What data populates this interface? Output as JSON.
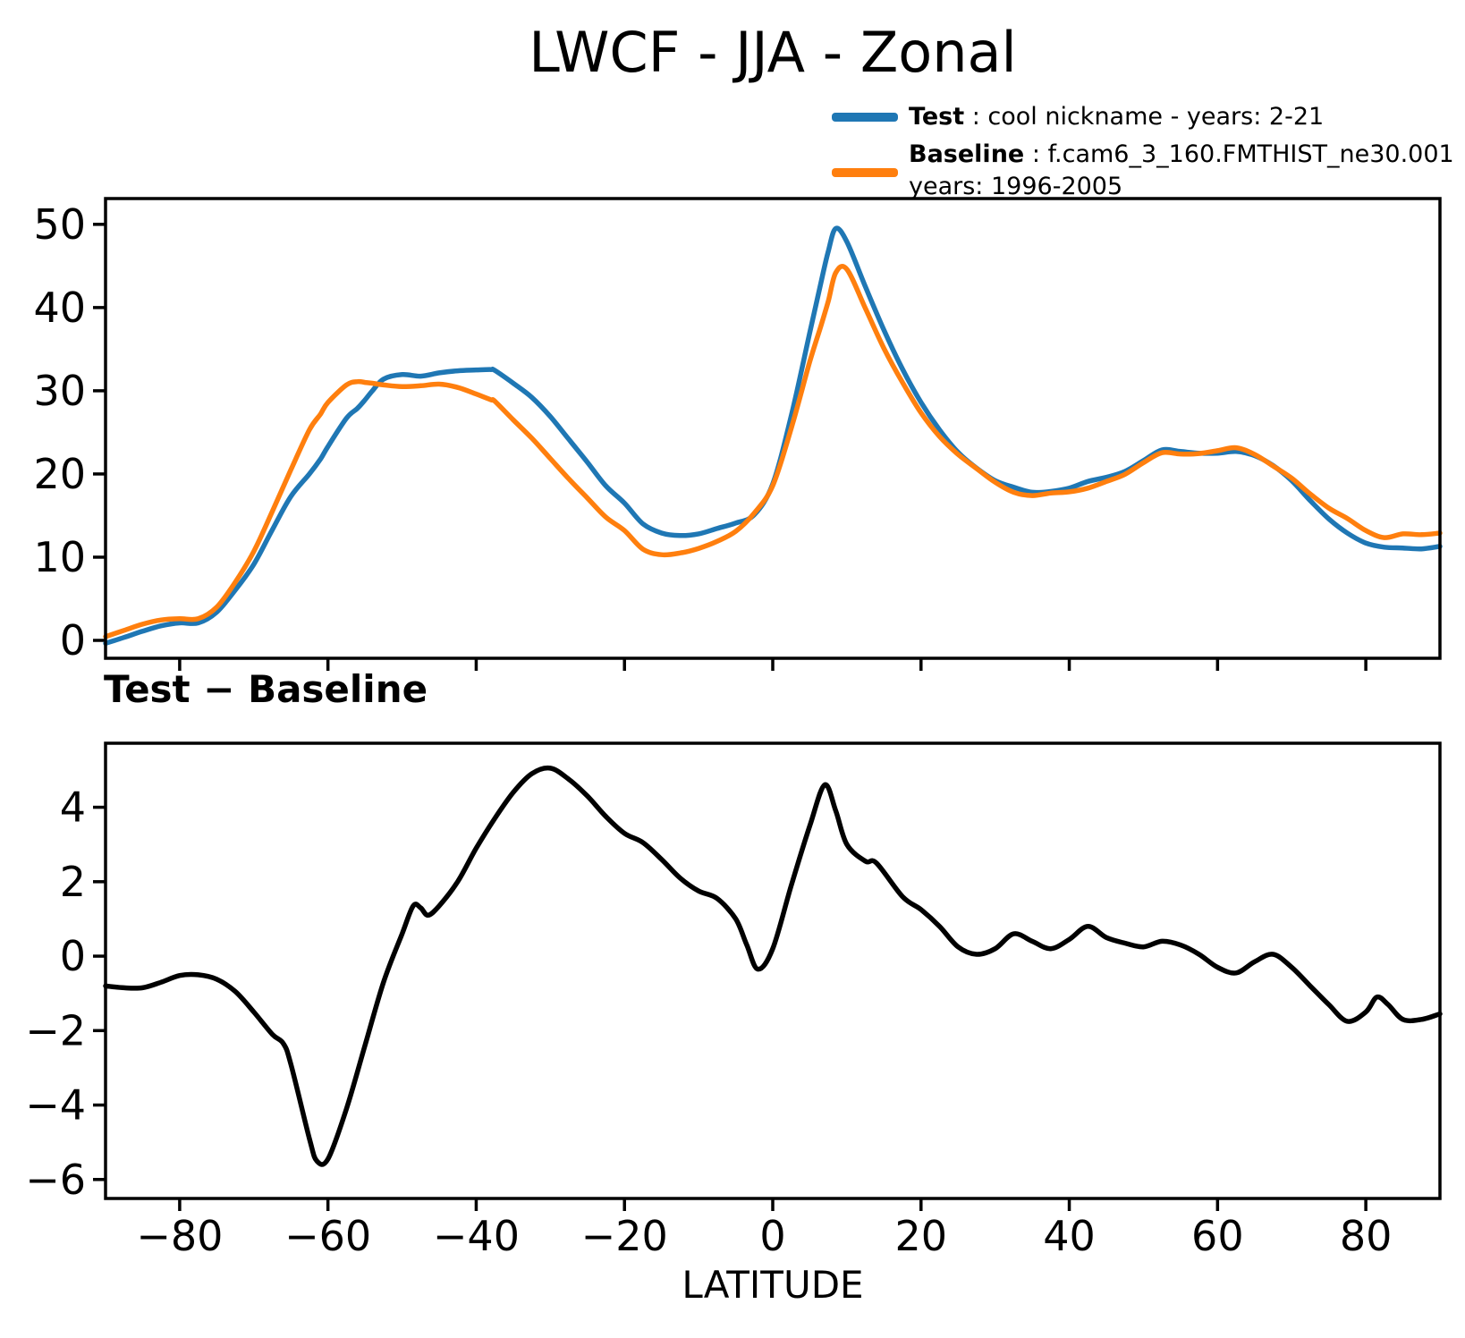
{
  "title": "LWCF - JJA - Zonal",
  "legend": {
    "entries": [
      {
        "name": "Test",
        "rest": " : cool nickname - years: 2-21",
        "line2": "",
        "color": "#1f77b4"
      },
      {
        "name": "Baseline",
        "rest": " : f.cam6_3_160.FMTHIST_ne30.001",
        "line2": "years: 1996-2005",
        "color": "#ff7f0e"
      }
    ]
  },
  "chart_data": [
    {
      "type": "line",
      "title": "LWCF - JJA - Zonal",
      "xlabel": "LATITUDE",
      "ylabel": "",
      "grid": false,
      "legend_position": "upper right, above axes",
      "xlim": [
        -90,
        90
      ],
      "ylim": [
        -2.15,
        53.1
      ],
      "xticks": [
        -80,
        -60,
        -40,
        -20,
        0,
        20,
        40,
        60,
        80
      ],
      "xtick_labels_visible": false,
      "yticks": [
        0,
        10,
        20,
        30,
        40,
        50
      ],
      "x": [
        -90,
        -87.5,
        -85,
        -82.5,
        -80,
        -77.5,
        -75,
        -72.5,
        -70,
        -67.5,
        -65,
        -62.5,
        -61,
        -60,
        -57.5,
        -56,
        -55,
        -54,
        -52.5,
        -50,
        -47.5,
        -45,
        -42.5,
        -40,
        -38,
        -37.5,
        -35,
        -32.5,
        -30,
        -27.5,
        -25,
        -22.5,
        -20,
        -17.5,
        -15,
        -12.5,
        -10,
        -7.5,
        -5,
        -2.5,
        0,
        2.5,
        5,
        6.5,
        7.5,
        8.5,
        10,
        12.5,
        15,
        17.5,
        20,
        22.5,
        25,
        27.5,
        30,
        32.5,
        35,
        37.5,
        40,
        42.5,
        45,
        47.5,
        50,
        52.5,
        55,
        57.5,
        60,
        62.5,
        65,
        67.5,
        70,
        72.5,
        75,
        77.5,
        80,
        82.5,
        85,
        87.5,
        90
      ],
      "series": [
        {
          "name": "Test",
          "color": "#1f77b4",
          "values": [
            -0.35,
            0.35,
            1.1,
            1.75,
            2.1,
            2.1,
            3.4,
            6.05,
            9.15,
            13.3,
            17.3,
            20.0,
            21.8,
            23.3,
            26.7,
            27.9,
            28.9,
            30.0,
            31.4,
            31.95,
            31.75,
            32.15,
            32.4,
            32.5,
            32.55,
            32.45,
            30.9,
            29.2,
            26.9,
            24.15,
            21.4,
            18.55,
            16.5,
            14.0,
            12.9,
            12.6,
            12.8,
            13.45,
            14.1,
            15.1,
            18.8,
            27.0,
            37.0,
            43.0,
            46.8,
            49.5,
            47.9,
            42.5,
            37.3,
            32.6,
            28.6,
            25.3,
            22.6,
            20.7,
            19.2,
            18.4,
            17.8,
            17.9,
            18.3,
            19.1,
            19.6,
            20.3,
            21.6,
            22.9,
            22.7,
            22.5,
            22.5,
            22.7,
            22.2,
            21.0,
            19.2,
            16.8,
            14.6,
            12.9,
            11.7,
            11.2,
            11.1,
            11.0,
            11.3
          ]
        },
        {
          "name": "Baseline",
          "color": "#ff7f0e",
          "values": [
            0.45,
            1.2,
            1.95,
            2.45,
            2.6,
            2.6,
            4.0,
            7.0,
            10.7,
            15.5,
            20.5,
            25.3,
            27.2,
            28.6,
            30.7,
            31.1,
            31.0,
            30.9,
            30.7,
            30.5,
            30.6,
            30.8,
            30.4,
            29.6,
            28.9,
            28.75,
            26.5,
            24.3,
            21.85,
            19.4,
            17.1,
            14.8,
            13.2,
            10.95,
            10.3,
            10.5,
            11.05,
            11.9,
            13.1,
            15.3,
            18.6,
            25.5,
            33.5,
            37.8,
            40.8,
            44.2,
            44.6,
            39.9,
            35.1,
            31.0,
            27.35,
            24.5,
            22.35,
            20.65,
            19.0,
            17.8,
            17.4,
            17.7,
            17.85,
            18.3,
            19.1,
            19.95,
            21.35,
            22.55,
            22.4,
            22.45,
            22.8,
            23.15,
            22.35,
            20.95,
            19.5,
            17.6,
            15.9,
            14.65,
            13.2,
            12.35,
            12.8,
            12.7,
            12.9
          ]
        }
      ]
    },
    {
      "type": "line",
      "title": "Test − Baseline",
      "xlabel": "LATITUDE",
      "ylabel": "",
      "grid": false,
      "xlim": [
        -90,
        90
      ],
      "ylim": [
        -6.51,
        5.72
      ],
      "xticks": [
        -80,
        -60,
        -40,
        -20,
        0,
        20,
        40,
        60,
        80
      ],
      "xtick_labels_visible": true,
      "yticks": [
        -6,
        -4,
        -2,
        0,
        2,
        4
      ],
      "x": [
        -90,
        -87.5,
        -85,
        -82.5,
        -80,
        -77.5,
        -75,
        -72.5,
        -70,
        -67.5,
        -66,
        -65,
        -62.5,
        -61.5,
        -60,
        -57.5,
        -55,
        -52.5,
        -50,
        -48.5,
        -47.5,
        -46.5,
        -45,
        -42.5,
        -40,
        -37.5,
        -35,
        -32.5,
        -30,
        -27.5,
        -25,
        -22.5,
        -20,
        -17.5,
        -15,
        -12.5,
        -10,
        -7.5,
        -5,
        -3.5,
        -2,
        0,
        2.5,
        5,
        7,
        8.5,
        10,
        12.5,
        14,
        17.5,
        20,
        22.5,
        25,
        27.5,
        30,
        32.5,
        35,
        37.5,
        40,
        42.5,
        45,
        47.5,
        50,
        52.5,
        55,
        57.5,
        60,
        62.5,
        65,
        67.5,
        70,
        72.5,
        75,
        77.5,
        80,
        81.5,
        83,
        85,
        87.5,
        90
      ],
      "series": [
        {
          "name": "Test minus Baseline",
          "color": "#000000",
          "values": [
            -0.8,
            -0.85,
            -0.85,
            -0.7,
            -0.52,
            -0.5,
            -0.62,
            -0.95,
            -1.5,
            -2.1,
            -2.35,
            -2.9,
            -4.9,
            -5.5,
            -5.45,
            -4.1,
            -2.4,
            -0.7,
            0.6,
            1.35,
            1.3,
            1.1,
            1.35,
            2.0,
            2.9,
            3.7,
            4.4,
            4.9,
            5.05,
            4.75,
            4.3,
            3.75,
            3.3,
            3.05,
            2.6,
            2.1,
            1.75,
            1.55,
            1.0,
            0.3,
            -0.35,
            0.2,
            1.9,
            3.5,
            4.6,
            3.9,
            3.0,
            2.55,
            2.5,
            1.6,
            1.25,
            0.8,
            0.25,
            0.05,
            0.2,
            0.6,
            0.4,
            0.2,
            0.45,
            0.8,
            0.5,
            0.35,
            0.25,
            0.4,
            0.3,
            0.05,
            -0.3,
            -0.45,
            -0.15,
            0.05,
            -0.3,
            -0.8,
            -1.3,
            -1.75,
            -1.5,
            -1.1,
            -1.3,
            -1.7,
            -1.7,
            -1.55
          ]
        }
      ]
    }
  ]
}
